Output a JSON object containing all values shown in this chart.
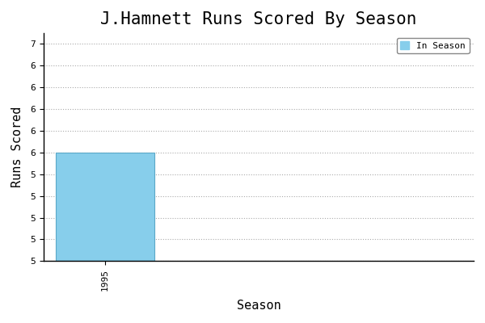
{
  "title": "J.Hamnett Runs Scored By Season",
  "xlabel": "Season",
  "ylabel": "Runs Scored",
  "seasons": [
    1995
  ],
  "values": [
    6
  ],
  "bar_color": "#87CEEB",
  "bar_edgecolor": "#5BA8C8",
  "legend_label": "In Season",
  "ylim_min": 5.0,
  "ylim_max": 7.1,
  "xlim_min": 1994.5,
  "xlim_max": 1998.0,
  "bar_width": 0.8,
  "grid_color": "#aaaaaa",
  "background_color": "#ffffff",
  "title_fontsize": 15,
  "axis_label_fontsize": 11,
  "tick_fontsize": 8,
  "font_family": "monospace",
  "ytick_step": 0.2
}
